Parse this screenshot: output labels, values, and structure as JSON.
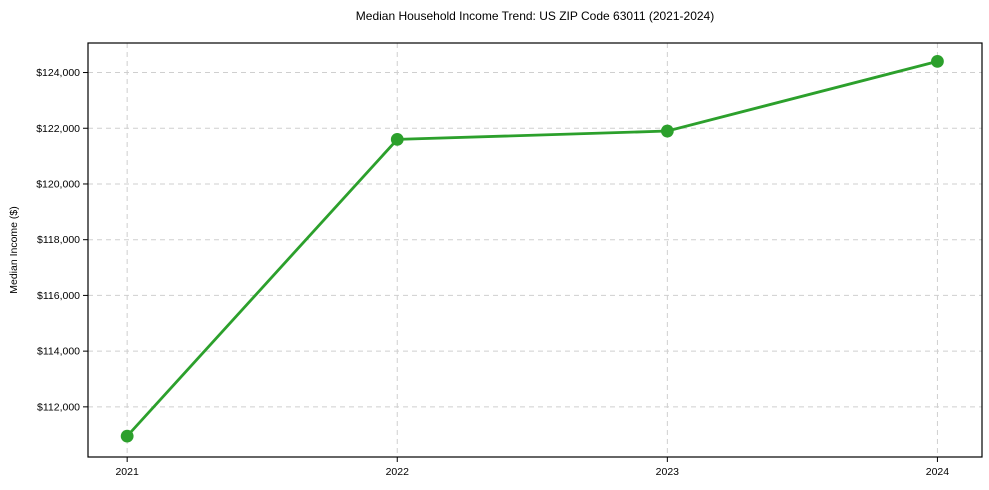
{
  "chart_data": {
    "type": "line",
    "title": "Median Household Income Trend: US ZIP Code 63011 (2021-2024)",
    "xlabel": "",
    "ylabel": "Median Income ($)",
    "x": [
      2021,
      2022,
      2023,
      2024
    ],
    "values": [
      110950,
      121600,
      121900,
      124400
    ],
    "xticks": {
      "values": [
        2021,
        2022,
        2023,
        2024
      ],
      "labels": [
        "2021",
        "2022",
        "2023",
        "2024"
      ]
    },
    "yticks": {
      "values": [
        112000,
        114000,
        116000,
        118000,
        120000,
        122000,
        124000
      ],
      "labels": [
        "$112,000",
        "$114,000",
        "$116,000",
        "$118,000",
        "$120,000",
        "$122,000",
        "$124,000"
      ]
    },
    "xlim": [
      2020.855,
      2024.165
    ],
    "ylim": [
      110200,
      125060
    ],
    "line_color": "#2ca02c",
    "marker": "circle",
    "marker_color": "#2ca02c",
    "grid": "dashed",
    "grid_color": "#cfcfcf",
    "legend": "none"
  }
}
